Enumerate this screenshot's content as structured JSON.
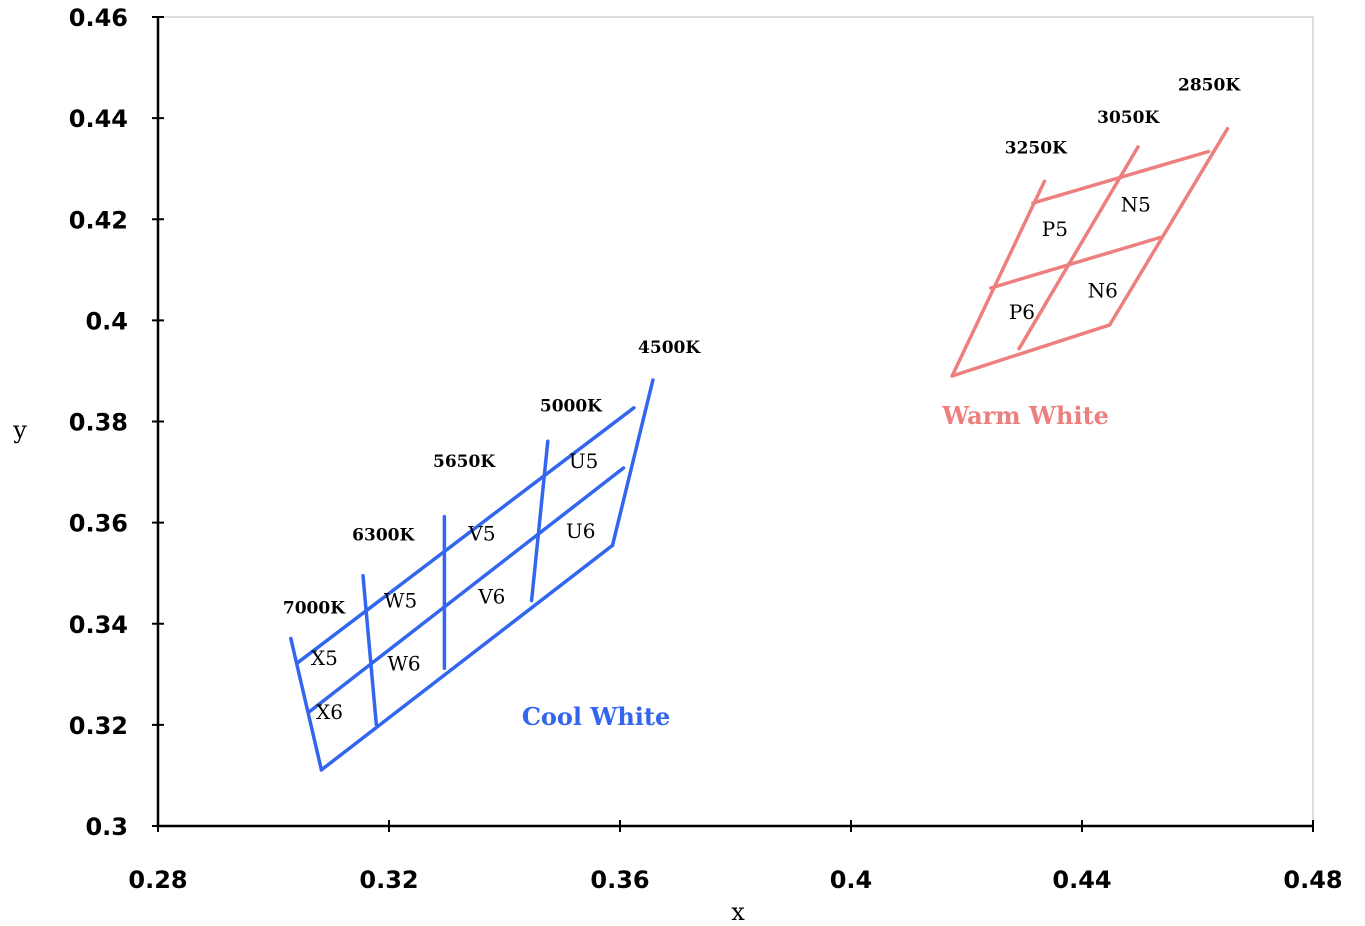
{
  "chart_data": {
    "type": "diagram",
    "xlabel": "x",
    "ylabel": "y",
    "xlim": [
      0.28,
      0.48
    ],
    "ylim": [
      0.3,
      0.46
    ],
    "x_ticks": [
      "0.28",
      "0.32",
      "0.36",
      "0.4",
      "0.44",
      "0.48"
    ],
    "y_ticks": [
      "0.3",
      "0.32",
      "0.34",
      "0.36",
      "0.38",
      "0.4",
      "0.42",
      "0.44",
      "0.46"
    ],
    "grid": false,
    "colors": {
      "cool": "#3366ee",
      "warm": "#ee7f7f",
      "axis": "#000000"
    },
    "groups": [
      {
        "name": "Cool White",
        "color": "#3366ee",
        "label_at": [
          0.343,
          0.32
        ],
        "lines": [
          [
            [
              0.303,
              0.3371
            ],
            [
              0.3083,
              0.3111
            ]
          ],
          [
            [
              0.3155,
              0.3495
            ],
            [
              0.3178,
              0.3201
            ]
          ],
          [
            [
              0.3296,
              0.3612
            ],
            [
              0.3296,
              0.3312
            ]
          ],
          [
            [
              0.3475,
              0.3761
            ],
            [
              0.3447,
              0.3446
            ]
          ],
          [
            [
              0.3657,
              0.3882
            ],
            [
              0.3587,
              0.3555
            ]
          ],
          [
            [
              0.3043,
              0.3324
            ],
            [
              0.3624,
              0.3827
            ]
          ],
          [
            [
              0.3061,
              0.3225
            ],
            [
              0.3606,
              0.3708
            ]
          ],
          [
            [
              0.3083,
              0.3111
            ],
            [
              0.3587,
              0.3555
            ]
          ]
        ],
        "cct_labels": [
          {
            "text": "7000K",
            "at": [
              0.307,
              0.342
            ]
          },
          {
            "text": "6300K",
            "at": [
              0.319,
              0.3565
            ]
          },
          {
            "text": "5650K",
            "at": [
              0.333,
              0.371
            ]
          },
          {
            "text": "5000K",
            "at": [
              0.3515,
              0.382
            ]
          },
          {
            "text": "4500K",
            "at": [
              0.3685,
              0.3935
            ]
          }
        ],
        "bins": [
          {
            "text": "X5",
            "at": [
              0.3088,
              0.3318
            ]
          },
          {
            "text": "X6",
            "at": [
              0.3097,
              0.3212
            ]
          },
          {
            "text": "W5",
            "at": [
              0.322,
              0.3432
            ]
          },
          {
            "text": "W6",
            "at": [
              0.3226,
              0.3308
            ]
          },
          {
            "text": "V5",
            "at": [
              0.3361,
              0.3565
            ]
          },
          {
            "text": "V6",
            "at": [
              0.3378,
              0.344
            ]
          },
          {
            "text": "U5",
            "at": [
              0.3537,
              0.3708
            ]
          },
          {
            "text": "U6",
            "at": [
              0.3532,
              0.357
            ]
          }
        ]
      },
      {
        "name": "Warm White",
        "color": "#ee7f7f",
        "label_at": [
          0.4158,
          0.3795
        ],
        "lines": [
          [
            [
              0.4335,
              0.4275
            ],
            [
              0.4175,
              0.389
            ]
          ],
          [
            [
              0.4497,
              0.4343
            ],
            [
              0.4291,
              0.3944
            ]
          ],
          [
            [
              0.4652,
              0.4379
            ],
            [
              0.4448,
              0.3991
            ]
          ],
          [
            [
              0.4315,
              0.4232
            ],
            [
              0.4619,
              0.4334
            ]
          ],
          [
            [
              0.4242,
              0.4064
            ],
            [
              0.4535,
              0.4164
            ]
          ],
          [
            [
              0.4175,
              0.389
            ],
            [
              0.4448,
              0.3991
            ]
          ]
        ],
        "cct_labels": [
          {
            "text": "3250K",
            "at": [
              0.432,
              0.433
            ]
          },
          {
            "text": "3050K",
            "at": [
              0.448,
              0.439
            ]
          },
          {
            "text": "2850K",
            "at": [
              0.462,
              0.4455
            ]
          }
        ],
        "bins": [
          {
            "text": "P5",
            "at": [
              0.4353,
              0.4167
            ]
          },
          {
            "text": "N5",
            "at": [
              0.4493,
              0.4215
            ]
          },
          {
            "text": "P6",
            "at": [
              0.4296,
              0.4003
            ]
          },
          {
            "text": "N6",
            "at": [
              0.4436,
              0.4045
            ]
          }
        ]
      }
    ]
  }
}
